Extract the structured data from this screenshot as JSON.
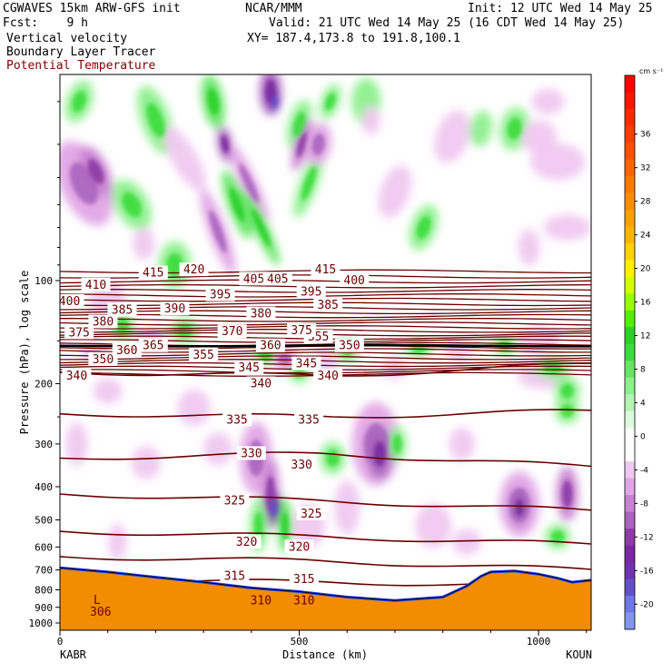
{
  "header": {
    "model": "CGWAVES 15km ARW-GFS init",
    "center": "NCAR/MMM",
    "init": "Init: 12 UTC Wed 14 May 25",
    "fcst": "Fcst:    9 h",
    "valid": "Valid: 21 UTC Wed 14 May 25 (16 CDT Wed 14 May 25)",
    "fields": [
      "Vertical velocity",
      "Boundary Layer Tracer",
      "Potential Temperature"
    ],
    "xy": "XY= 187.4,173.8 to 191.8,100.1"
  },
  "colors": {
    "theta_contour": "#6b0000",
    "potential_temperature_text": "#800000",
    "terrain": "#f28c00",
    "tropopause": "#000000"
  },
  "chart_data": {
    "type": "heatmap",
    "subtype": "vertical cross-section",
    "xlabel": "Distance (km)",
    "ylabel": "Pressure (hPa), log scale",
    "x_ticks": [
      0,
      500,
      1000
    ],
    "x_range": [
      0,
      1110
    ],
    "y_ticks": [
      100,
      200,
      300,
      400,
      500,
      600,
      700,
      800,
      900,
      1000
    ],
    "y_scale": "log",
    "y_range": [
      1050,
      25
    ],
    "endpoint_left": "KABR",
    "endpoint_right": "KOUN",
    "colorbar": {
      "units": "cm s⁻¹",
      "tick_values": [
        36,
        32,
        28,
        24,
        20,
        16,
        12,
        8,
        4,
        0,
        -4,
        -8,
        -12,
        -16,
        -20
      ],
      "levels": [
        {
          "value": 42,
          "color": "#ff0000"
        },
        {
          "value": 40,
          "color": "#ff1400"
        },
        {
          "value": 38,
          "color": "#ff2800"
        },
        {
          "value": 36,
          "color": "#ff3c00"
        },
        {
          "value": 34,
          "color": "#ff5000"
        },
        {
          "value": 32,
          "color": "#ff6400"
        },
        {
          "value": 30,
          "color": "#ff7800"
        },
        {
          "value": 28,
          "color": "#ff8c00"
        },
        {
          "value": 26,
          "color": "#ffa000"
        },
        {
          "value": 24,
          "color": "#ffb400"
        },
        {
          "value": 22,
          "color": "#ffd200"
        },
        {
          "value": 20,
          "color": "#fff000"
        },
        {
          "value": 18,
          "color": "#d2ff00"
        },
        {
          "value": 16,
          "color": "#96ff00"
        },
        {
          "value": 14,
          "color": "#50f000"
        },
        {
          "value": 12,
          "color": "#28d228"
        },
        {
          "value": 10,
          "color": "#3cdc3c"
        },
        {
          "value": 8,
          "color": "#64e664"
        },
        {
          "value": 6,
          "color": "#8cf08c"
        },
        {
          "value": 4,
          "color": "#b4f5b4"
        },
        {
          "value": 2,
          "color": "#dcfadc"
        },
        {
          "value": 0,
          "color": "#ffffff"
        },
        {
          "value": -2,
          "color": "#ffffff"
        },
        {
          "value": -4,
          "color": "#f0c8f0"
        },
        {
          "value": -6,
          "color": "#e1a5e6"
        },
        {
          "value": -8,
          "color": "#c882d2"
        },
        {
          "value": -10,
          "color": "#aa64be"
        },
        {
          "value": -12,
          "color": "#8c3ca5"
        },
        {
          "value": -14,
          "color": "#7828a0"
        },
        {
          "value": -16,
          "color": "#6e32b4"
        },
        {
          "value": -18,
          "color": "#6450c8"
        },
        {
          "value": -20,
          "color": "#6e78e6"
        },
        {
          "value": -22,
          "color": "#8296f0"
        }
      ]
    },
    "theta_contours": [
      {
        "value": 306,
        "x": 85,
        "p": 930
      },
      {
        "value": 310,
        "x": 420,
        "p": 860
      },
      {
        "value": 310,
        "x": 510,
        "p": 860
      },
      {
        "value": 315,
        "x": 365,
        "p": 730
      },
      {
        "value": 315,
        "x": 510,
        "p": 745
      },
      {
        "value": 320,
        "x": 390,
        "p": 580
      },
      {
        "value": 320,
        "x": 500,
        "p": 600
      },
      {
        "value": 325,
        "x": 365,
        "p": 440
      },
      {
        "value": 325,
        "x": 525,
        "p": 480
      },
      {
        "value": 330,
        "x": 400,
        "p": 320
      },
      {
        "value": 330,
        "x": 505,
        "p": 345
      },
      {
        "value": 335,
        "x": 370,
        "p": 255
      },
      {
        "value": 335,
        "x": 520,
        "p": 255
      },
      {
        "value": 340,
        "x": 35,
        "p": 190
      },
      {
        "value": 340,
        "x": 420,
        "p": 200
      },
      {
        "value": 340,
        "x": 560,
        "p": 190
      },
      {
        "value": 345,
        "x": 395,
        "p": 180
      },
      {
        "value": 345,
        "x": 515,
        "p": 175
      },
      {
        "value": 350,
        "x": 90,
        "p": 170
      },
      {
        "value": 350,
        "x": 605,
        "p": 155
      },
      {
        "value": 355,
        "x": 300,
        "p": 165
      },
      {
        "value": 355,
        "x": 540,
        "p": 146
      },
      {
        "value": 360,
        "x": 140,
        "p": 160
      },
      {
        "value": 360,
        "x": 440,
        "p": 155
      },
      {
        "value": 365,
        "x": 195,
        "p": 155
      },
      {
        "value": 370,
        "x": 360,
        "p": 141
      },
      {
        "value": 375,
        "x": 40,
        "p": 142
      },
      {
        "value": 375,
        "x": 505,
        "p": 140
      },
      {
        "value": 380,
        "x": 90,
        "p": 132
      },
      {
        "value": 380,
        "x": 420,
        "p": 125
      },
      {
        "value": 385,
        "x": 130,
        "p": 122
      },
      {
        "value": 385,
        "x": 560,
        "p": 118
      },
      {
        "value": 390,
        "x": 240,
        "p": 121
      },
      {
        "value": 395,
        "x": 335,
        "p": 110
      },
      {
        "value": 395,
        "x": 525,
        "p": 108
      },
      {
        "value": 400,
        "x": 20,
        "p": 115
      },
      {
        "value": 400,
        "x": 615,
        "p": 100
      },
      {
        "value": 405,
        "x": 405,
        "p": 99
      },
      {
        "value": 405,
        "x": 455,
        "p": 99
      },
      {
        "value": 410,
        "x": 75,
        "p": 103
      },
      {
        "value": 415,
        "x": 195,
        "p": 95
      },
      {
        "value": 415,
        "x": 555,
        "p": 93
      },
      {
        "value": 420,
        "x": 280,
        "p": 93
      }
    ],
    "annotations": [
      {
        "text": "L",
        "x": 70,
        "p": 880
      }
    ]
  }
}
